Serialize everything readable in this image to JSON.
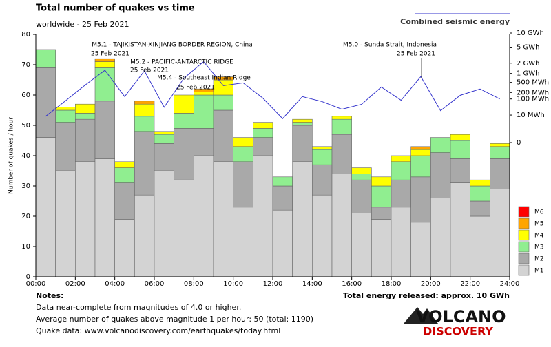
{
  "chart_data": {
    "type": "bar",
    "title": "Total number of quakes vs time",
    "subtitle": "worldwide - 25 Feb 2021",
    "y_label": "Number of quakes / hour",
    "x": [
      0,
      1,
      2,
      3,
      4,
      5,
      6,
      7,
      8,
      9,
      10,
      11,
      12,
      13,
      14,
      15,
      16,
      17,
      18,
      19,
      20,
      21,
      22,
      23
    ],
    "xlim": [
      0,
      24
    ],
    "xticks": [
      {
        "value": 0,
        "label": "00:00"
      },
      {
        "value": 2,
        "label": "02:00"
      },
      {
        "value": 4,
        "label": "04:00"
      },
      {
        "value": 6,
        "label": "06:00"
      },
      {
        "value": 8,
        "label": "08:00"
      },
      {
        "value": 10,
        "label": "10:00"
      },
      {
        "value": 12,
        "label": "12:00"
      },
      {
        "value": 14,
        "label": "14:00"
      },
      {
        "value": 16,
        "label": "16:00"
      },
      {
        "value": 18,
        "label": "18:00"
      },
      {
        "value": 20,
        "label": "20:00"
      },
      {
        "value": 22,
        "label": "22:00"
      },
      {
        "value": 24,
        "label": "24:00"
      }
    ],
    "ylim": [
      0,
      80
    ],
    "yticks": [
      0,
      10,
      20,
      30,
      40,
      50,
      60,
      70,
      80
    ],
    "stacked": true,
    "series": [
      {
        "name": "M1",
        "color": "#d3d3d3",
        "values": [
          46,
          35,
          38,
          39,
          19,
          27,
          35,
          32,
          40,
          38,
          23,
          40,
          22,
          38,
          27,
          34,
          21,
          19,
          23,
          18,
          26,
          31,
          20,
          29
        ]
      },
      {
        "name": "M2",
        "color": "#a9a9a9",
        "values": [
          23,
          16,
          14,
          19,
          12,
          21,
          9,
          17,
          9,
          17,
          15,
          6,
          8,
          12,
          10,
          13,
          11,
          4,
          9,
          15,
          15,
          8,
          5,
          10
        ]
      },
      {
        "name": "M3",
        "color": "#90ee90",
        "values": [
          6,
          4,
          2,
          11,
          5,
          5,
          3,
          5,
          11,
          5,
          5,
          3,
          3,
          1,
          5,
          5,
          2,
          7,
          6,
          7,
          5,
          6,
          5,
          4
        ]
      },
      {
        "name": "M4",
        "color": "#ffff00",
        "values": [
          0,
          1,
          3,
          2,
          2,
          4,
          1,
          6,
          1,
          5,
          3,
          2,
          0,
          1,
          1,
          1,
          2,
          3,
          2,
          2,
          0,
          2,
          2,
          1
        ]
      },
      {
        "name": "M5",
        "color": "#ffa500",
        "values": [
          0,
          0,
          0,
          1,
          0,
          1,
          0,
          0,
          1,
          1,
          0,
          0,
          0,
          0,
          0,
          0,
          0,
          0,
          0,
          1,
          0,
          0,
          0,
          0
        ]
      },
      {
        "name": "M6",
        "color": "#ff0000",
        "values": [
          0,
          0,
          0,
          0,
          0,
          0,
          0,
          0,
          0,
          0,
          0,
          0,
          0,
          0,
          0,
          0,
          0,
          0,
          0,
          0,
          0,
          0,
          0,
          0
        ]
      }
    ],
    "energy": {
      "name": "Combined seismic energy",
      "color": "#3333cc",
      "axis": "y2",
      "values": [
        8,
        80,
        400,
        1250,
        130,
        1200,
        35,
        700,
        2200,
        380,
        480,
        110,
        5,
        130,
        73,
        26,
        52,
        335,
        86,
        790,
        21,
        150,
        280,
        100
      ]
    },
    "y2_scale": "power",
    "y2_exponent": 0.2,
    "y2lim": [
      0,
      10000
    ],
    "y2ticks": [
      {
        "value": 10000,
        "label": "10 GWh"
      },
      {
        "value": 5000,
        "label": "5 GWh"
      },
      {
        "value": 2000,
        "label": "2 GWh"
      },
      {
        "value": 1000,
        "label": "1 GWh"
      },
      {
        "value": 500,
        "label": "500 MWh"
      },
      {
        "value": 200,
        "label": "200 MWh"
      },
      {
        "value": 100,
        "label": "100 MWh"
      },
      {
        "value": 10,
        "label": "10 MWh"
      },
      0
    ],
    "annotations": [
      {
        "text": "M5.1 - TAJIKISTAN-XINJIANG BORDER REGION, China",
        "date": "25 Feb 2021"
      },
      {
        "text": "M5.2 - PACIFIC-ANTARCTIC RIDGE",
        "date": "25 Feb 2021"
      },
      {
        "text": "M5.4 - Southeast Indian Ridge",
        "date": "25 Feb 2021"
      },
      {
        "text": "M5.0 - Sunda Strait, Indonesia",
        "date": "25 Feb 2021"
      }
    ],
    "notes_title": "Notes:",
    "notes": [
      "Data near-complete from magnitudes of 4.0 or higher.",
      "Average number of quakes above magnitude 1 per hour: 50 (total: 1190)",
      "Quake data: www.volcanodiscovery.com/earthquakes/today.html"
    ],
    "total_energy": "Total energy released: approx. 10 GWh",
    "logo": [
      "VOLCANO",
      "DISCOVERY"
    ]
  }
}
